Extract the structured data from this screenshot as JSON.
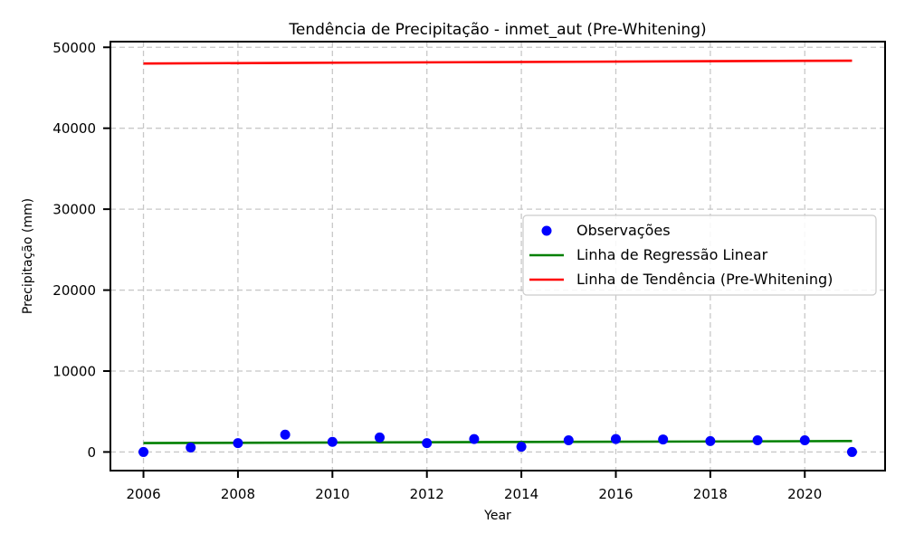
{
  "chart_data": {
    "type": "scatter",
    "title": "Tendência de Precipitação - inmet_aut (Pre-Whitening)",
    "xlabel": "Year",
    "ylabel": "Precipitação (mm)",
    "xlim": [
      2005.3,
      2021.7
    ],
    "ylim": [
      -2300,
      50700
    ],
    "x_ticks": [
      2006,
      2008,
      2010,
      2012,
      2014,
      2016,
      2018,
      2020
    ],
    "y_ticks": [
      0,
      10000,
      20000,
      30000,
      40000,
      50000
    ],
    "grid": true,
    "legend_position": "center-right",
    "series": [
      {
        "name": "Observações",
        "type": "scatter",
        "color": "#0000ff",
        "x": [
          2006,
          2007,
          2008,
          2009,
          2010,
          2011,
          2012,
          2013,
          2014,
          2015,
          2016,
          2017,
          2018,
          2019,
          2020,
          2021
        ],
        "y": [
          0,
          550,
          1100,
          2150,
          1250,
          1800,
          1100,
          1600,
          650,
          1450,
          1600,
          1550,
          1350,
          1450,
          1450,
          0
        ]
      },
      {
        "name": "Linha de Regressão Linear",
        "type": "line",
        "color": "#008000",
        "x": [
          2006,
          2021
        ],
        "y": [
          1100,
          1350
        ]
      },
      {
        "name": "Linha de Tendência (Pre-Whitening)",
        "type": "line",
        "color": "#ff0000",
        "x": [
          2006,
          2021
        ],
        "y": [
          48000,
          48350
        ]
      }
    ]
  }
}
